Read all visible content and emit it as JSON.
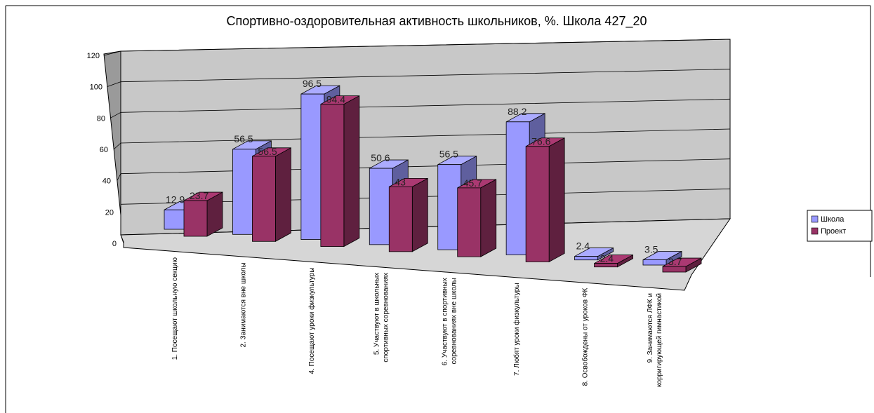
{
  "chart_data": {
    "type": "bar",
    "title": "Спортивно-оздоровительная активность школьников, %. Школа 427_20",
    "xlabel": "",
    "ylabel": "",
    "ylim": [
      0,
      120
    ],
    "yticks": [
      0,
      20,
      40,
      60,
      80,
      100,
      120
    ],
    "grid": true,
    "legend_position": "right",
    "categories": [
      [
        "1. Посещают школьную секцию"
      ],
      [
        "2. Занимаются вне школы"
      ],
      [
        "4. Посещают уроки физкультуры"
      ],
      [
        "5. Участвуют в школьных",
        "спортивных соревнованиях"
      ],
      [
        "6. Участвуют в спортивных",
        "соревнованиях вне школы"
      ],
      [
        "7. Любят уроки физкультуры"
      ],
      [
        "8. Освобождены от уроков ФК"
      ],
      [
        "9. Занимаются ЛФК и",
        "корригирующей гимнастикой"
      ]
    ],
    "series": [
      {
        "name": "Школа",
        "values": [
          12.9,
          56.5,
          96.5,
          50.6,
          56.5,
          88.2,
          2.4,
          3.5
        ],
        "labels": [
          "12.9",
          "56.5",
          "96.5",
          "50.6",
          "56.5",
          "88.2",
          "2.4",
          "3.5"
        ],
        "color": "#9999ff"
      },
      {
        "name": "Проект",
        "values": [
          23.7,
          56.5,
          94.4,
          43,
          45.7,
          76.6,
          2.4,
          3.7
        ],
        "labels": [
          "23.7",
          "56.5",
          "94.4",
          "43",
          "45.7",
          "76.6",
          "2.4",
          "3.7"
        ],
        "color": "#993366"
      }
    ]
  }
}
